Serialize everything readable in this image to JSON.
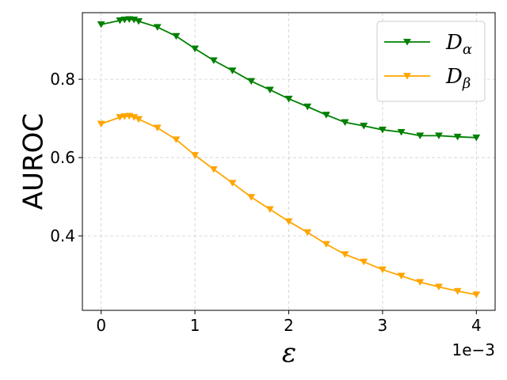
{
  "chart_data": {
    "type": "line",
    "xlabel": "ε",
    "ylabel": "AUROC",
    "x_offset_label": "1e−3",
    "xlim": [
      -0.0002,
      0.0042
    ],
    "ylim": [
      0.21,
      0.97
    ],
    "xticks": [
      0,
      0.001,
      0.002,
      0.003,
      0.004
    ],
    "xtick_labels": [
      "0",
      "1",
      "2",
      "3",
      "4"
    ],
    "yticks": [
      0.4,
      0.6,
      0.8
    ],
    "ytick_labels": [
      "0.4",
      "0.6",
      "0.8"
    ],
    "grid": true,
    "legend_position": "top-right",
    "x": [
      0,
      0.0002,
      0.00025,
      0.0003,
      0.00035,
      0.0004,
      0.0006,
      0.0008,
      0.001,
      0.0012,
      0.0014,
      0.0016,
      0.0018,
      0.002,
      0.0022,
      0.0024,
      0.0026,
      0.0028,
      0.003,
      0.0032,
      0.0034,
      0.0036,
      0.0038,
      0.004
    ],
    "series": [
      {
        "name": "D",
        "subscript": "α",
        "color": "#008000",
        "marker": "triangle-down",
        "values": [
          0.94,
          0.95,
          0.952,
          0.953,
          0.952,
          0.948,
          0.933,
          0.91,
          0.878,
          0.848,
          0.822,
          0.795,
          0.773,
          0.75,
          0.73,
          0.709,
          0.69,
          0.681,
          0.671,
          0.665,
          0.656,
          0.656,
          0.653,
          0.651
        ]
      },
      {
        "name": "D",
        "subscript": "β",
        "color": "#ffa500",
        "marker": "triangle-down",
        "values": [
          0.686,
          0.703,
          0.705,
          0.706,
          0.703,
          0.698,
          0.676,
          0.646,
          0.606,
          0.57,
          0.535,
          0.499,
          0.468,
          0.437,
          0.409,
          0.379,
          0.353,
          0.334,
          0.314,
          0.298,
          0.282,
          0.27,
          0.259,
          0.25
        ]
      }
    ]
  }
}
